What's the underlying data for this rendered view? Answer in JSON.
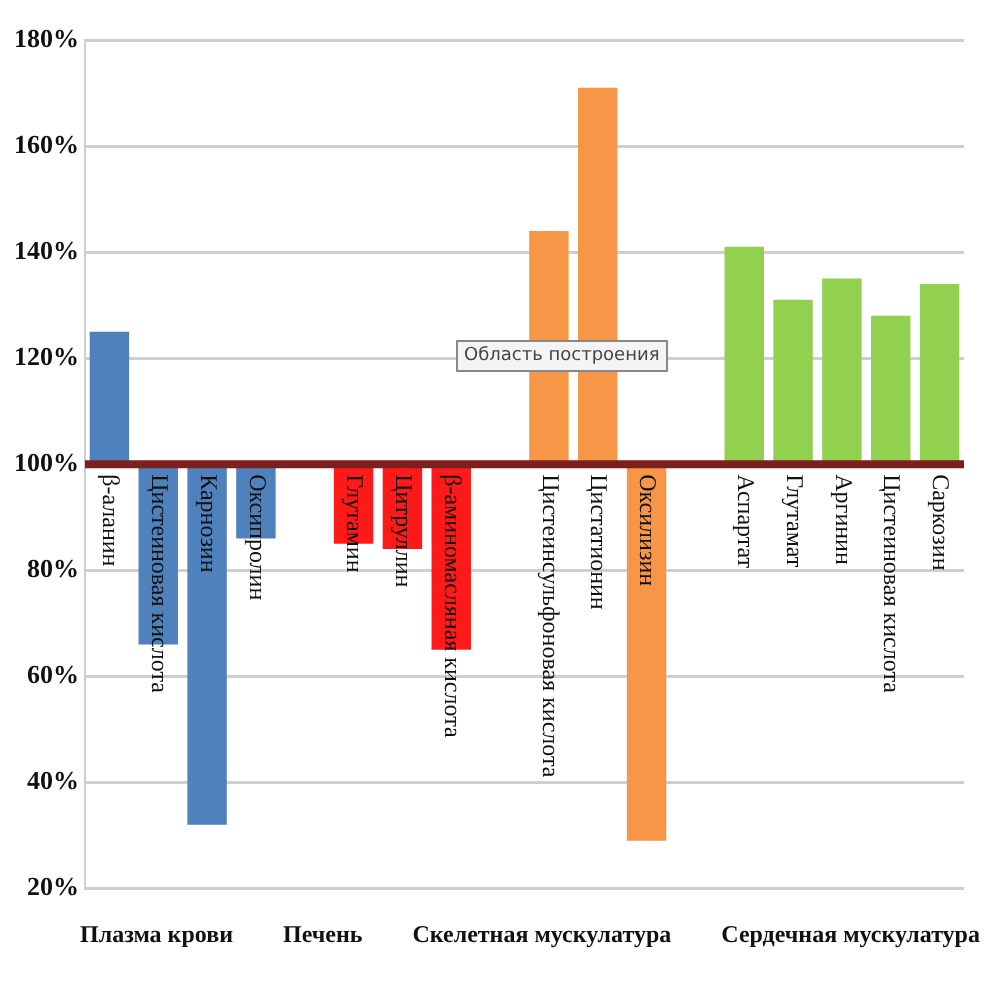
{
  "chart_data": {
    "type": "bar",
    "categories": [
      "β-аланин",
      "Цистеиновая кислота",
      "Карнозин",
      "Оксипролин",
      null,
      "Глутамин",
      "Цитруллин",
      "β-аминомасляная кислота",
      null,
      "Цистеинсульфоновая кислота",
      "Цистатионин",
      "Оксилизин",
      null,
      "Аспартат",
      "Глутамат",
      "Аргинин",
      "Цистеиновая кислота",
      "Саркозин"
    ],
    "base": [
      100,
      100,
      100,
      100,
      null,
      100,
      100,
      100,
      null,
      100,
      100,
      100,
      null,
      100,
      100,
      100,
      100,
      100
    ],
    "values": [
      25,
      -34,
      -68,
      -14,
      null,
      -15,
      -16,
      -35,
      null,
      44,
      71,
      -71,
      null,
      41,
      31,
      35,
      28,
      34
    ],
    "colors": [
      "#4f81bd",
      "#4f81bd",
      "#4f81bd",
      "#4f81bd",
      "#ffffff",
      "#ff1a1a",
      "#ff1a1a",
      "#ff1a1a",
      "#ffffff",
      "#f79646",
      "#f79646",
      "#f79646",
      "#ffffff",
      "#92d050",
      "#92d050",
      "#92d050",
      "#92d050",
      "#92d050"
    ],
    "ylim": [
      20,
      180
    ],
    "yticks": [
      {
        "value": 20,
        "label": "20%"
      },
      {
        "value": 40,
        "label": "40%"
      },
      {
        "value": 60,
        "label": "60%"
      },
      {
        "value": 80,
        "label": "80%"
      },
      {
        "value": 100,
        "label": "100%"
      },
      {
        "value": 120,
        "label": "120%"
      },
      {
        "value": 140,
        "label": "140%"
      },
      {
        "value": 160,
        "label": "160%"
      },
      {
        "value": 180,
        "label": "180%"
      }
    ],
    "grid": "y",
    "legend": false,
    "annotations": [
      "Плазма крови",
      "Печень",
      "Скелетная мускулатура",
      "Сердечная мускулатура",
      "Область построения"
    ]
  }
}
